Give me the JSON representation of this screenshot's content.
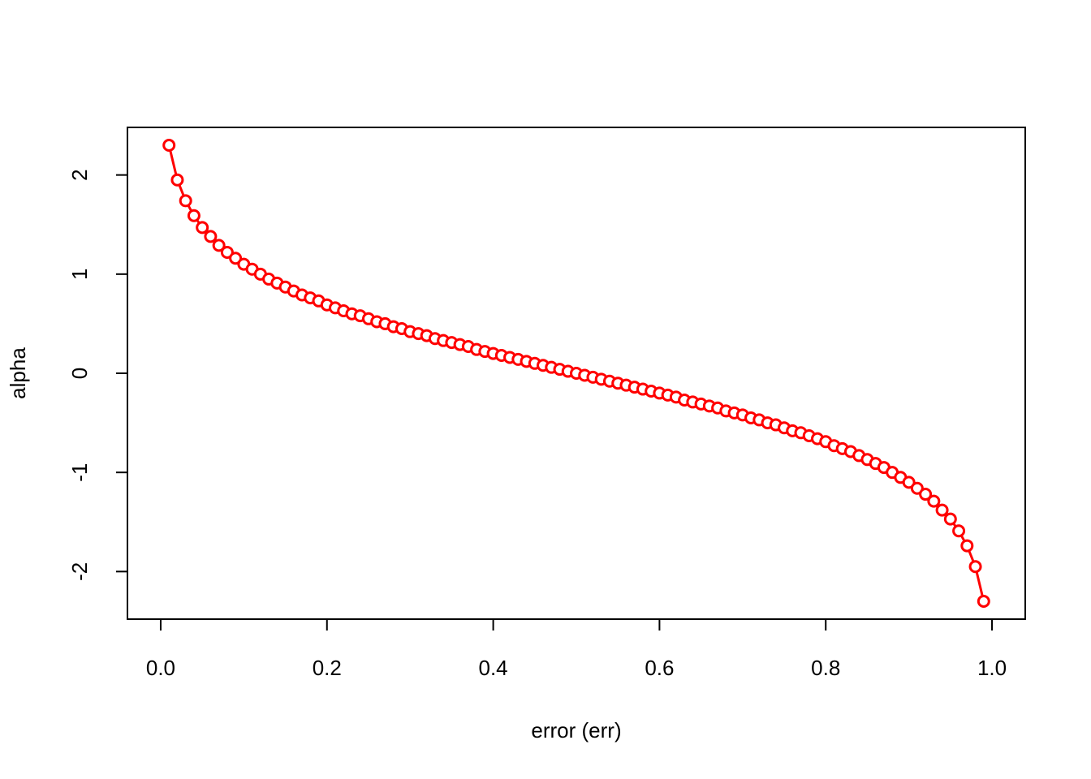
{
  "chart_data": {
    "type": "line",
    "xlabel": "error (err)",
    "ylabel": "alpha",
    "x": [
      0.01,
      0.02,
      0.03,
      0.04,
      0.05,
      0.06,
      0.07,
      0.08,
      0.09,
      0.1,
      0.11,
      0.12,
      0.13,
      0.14,
      0.15,
      0.16,
      0.17,
      0.18,
      0.19,
      0.2,
      0.21,
      0.22,
      0.23,
      0.24,
      0.25,
      0.26,
      0.27,
      0.28,
      0.29,
      0.3,
      0.31,
      0.32,
      0.33,
      0.34,
      0.35,
      0.36,
      0.37,
      0.38,
      0.39,
      0.4,
      0.41,
      0.42,
      0.43,
      0.44,
      0.45,
      0.46,
      0.47,
      0.48,
      0.49,
      0.5,
      0.51,
      0.52,
      0.53,
      0.54,
      0.55,
      0.56,
      0.57,
      0.58,
      0.59,
      0.6,
      0.61,
      0.62,
      0.63,
      0.64,
      0.65,
      0.66,
      0.67,
      0.68,
      0.69,
      0.7,
      0.71,
      0.72,
      0.73,
      0.74,
      0.75,
      0.76,
      0.77,
      0.78,
      0.79,
      0.8,
      0.81,
      0.82,
      0.83,
      0.84,
      0.85,
      0.86,
      0.87,
      0.88,
      0.89,
      0.9,
      0.91,
      0.92,
      0.93,
      0.94,
      0.95,
      0.96,
      0.97,
      0.98,
      0.99
    ],
    "series": [
      {
        "color": "#ff0000",
        "values": [
          2.3,
          1.95,
          1.74,
          1.59,
          1.47,
          1.38,
          1.29,
          1.22,
          1.16,
          1.1,
          1.05,
          1.0,
          0.95,
          0.91,
          0.87,
          0.83,
          0.79,
          0.76,
          0.73,
          0.69,
          0.66,
          0.63,
          0.6,
          0.58,
          0.55,
          0.52,
          0.5,
          0.47,
          0.45,
          0.42,
          0.4,
          0.38,
          0.35,
          0.33,
          0.31,
          0.29,
          0.27,
          0.24,
          0.22,
          0.2,
          0.18,
          0.16,
          0.14,
          0.12,
          0.1,
          0.08,
          0.06,
          0.04,
          0.02,
          0,
          -0.02,
          -0.04,
          -0.06,
          -0.08,
          -0.1,
          -0.12,
          -0.14,
          -0.16,
          -0.18,
          -0.2,
          -0.22,
          -0.24,
          -0.27,
          -0.29,
          -0.31,
          -0.33,
          -0.35,
          -0.38,
          -0.4,
          -0.42,
          -0.45,
          -0.47,
          -0.5,
          -0.52,
          -0.55,
          -0.58,
          -0.6,
          -0.63,
          -0.66,
          -0.69,
          -0.73,
          -0.76,
          -0.79,
          -0.83,
          -0.87,
          -0.91,
          -0.95,
          -1.0,
          -1.05,
          -1.1,
          -1.16,
          -1.22,
          -1.29,
          -1.38,
          -1.47,
          -1.59,
          -1.74,
          -1.95,
          -2.3
        ]
      }
    ],
    "xlim": [
      -0.04,
      1.04
    ],
    "ylim": [
      -2.48,
      2.48
    ],
    "xticks": [
      {
        "value": 0,
        "label": "0.0"
      },
      0.2,
      0.4,
      0.6,
      0.8,
      {
        "value": 1,
        "label": "1.0"
      }
    ],
    "yticks": [
      -2,
      -1,
      0,
      1,
      2
    ]
  }
}
